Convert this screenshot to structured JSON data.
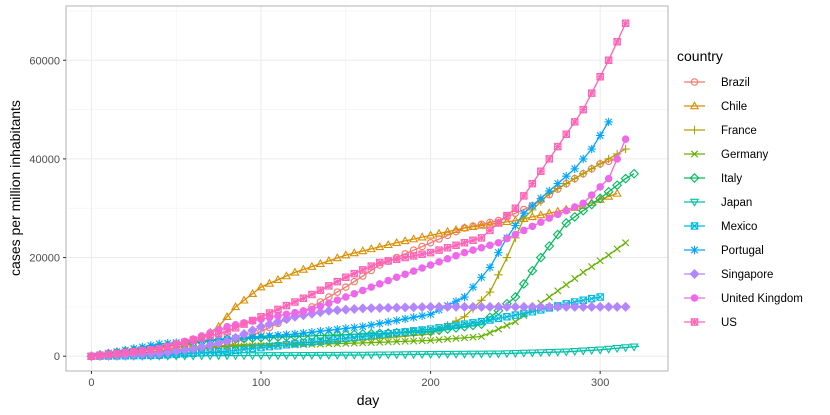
{
  "chart_data": {
    "type": "line",
    "xlabel": "day",
    "ylabel": "cases per million inhabitants",
    "xlim": [
      -15,
      340
    ],
    "ylim": [
      -3000,
      71000
    ],
    "xticks": [
      0,
      100,
      200,
      300
    ],
    "yticks": [
      0,
      20000,
      40000,
      60000
    ],
    "xtick_labels": [
      "0",
      "100",
      "200",
      "300"
    ],
    "ytick_labels": [
      "0",
      "20000",
      "40000",
      "60000"
    ],
    "grid": true,
    "legend_title": "country",
    "legend_position": "right",
    "series": [
      {
        "name": "Brazil",
        "color": "#F8766D",
        "marker": "circle",
        "x": [
          0,
          40,
          80,
          100,
          130,
          150,
          170,
          200,
          220,
          240,
          260,
          280,
          300,
          310
        ],
        "y": [
          0,
          500,
          2000,
          5000,
          10000,
          14000,
          18500,
          23000,
          26000,
          27500,
          30500,
          35000,
          39000,
          40000
        ]
      },
      {
        "name": "Chile",
        "color": "#DB8E00",
        "marker": "triangle",
        "x": [
          0,
          40,
          60,
          75,
          85,
          100,
          120,
          150,
          180,
          200,
          220,
          250,
          270,
          290,
          310
        ],
        "y": [
          0,
          1000,
          2500,
          6000,
          10000,
          14000,
          17000,
          20500,
          23000,
          24500,
          26000,
          27500,
          29000,
          30500,
          33000
        ]
      },
      {
        "name": "France",
        "color": "#AEA200",
        "marker": "plus",
        "x": [
          0,
          40,
          70,
          100,
          150,
          200,
          220,
          235,
          245,
          255,
          270,
          290,
          305,
          315
        ],
        "y": [
          0,
          500,
          2000,
          2500,
          3000,
          4500,
          8000,
          13000,
          20000,
          28000,
          33000,
          37000,
          40000,
          42000
        ]
      },
      {
        "name": "Germany",
        "color": "#64B200",
        "marker": "x",
        "x": [
          0,
          40,
          80,
          120,
          160,
          200,
          230,
          250,
          270,
          290,
          305,
          315
        ],
        "y": [
          0,
          1000,
          2000,
          2300,
          2700,
          3200,
          4000,
          7000,
          12000,
          17000,
          20500,
          23000
        ]
      },
      {
        "name": "Italy",
        "color": "#00BD5C",
        "marker": "diamond",
        "x": [
          0,
          40,
          80,
          120,
          160,
          200,
          230,
          250,
          265,
          280,
          300,
          315,
          320
        ],
        "y": [
          0,
          2000,
          3500,
          4000,
          4500,
          5000,
          6500,
          12000,
          20000,
          27000,
          32000,
          36000,
          37000
        ]
      },
      {
        "name": "Japan",
        "color": "#00C1A7",
        "marker": "triangle-down",
        "x": [
          0,
          40,
          80,
          120,
          160,
          200,
          240,
          280,
          300,
          323
        ],
        "y": [
          0,
          50,
          120,
          180,
          250,
          400,
          500,
          900,
          1300,
          2000
        ]
      },
      {
        "name": "Mexico",
        "color": "#00BADE",
        "marker": "square-x",
        "x": [
          0,
          40,
          80,
          120,
          160,
          200,
          230,
          260,
          285,
          300
        ],
        "y": [
          0,
          200,
          1000,
          2500,
          4000,
          5500,
          7000,
          9000,
          11000,
          12000
        ]
      },
      {
        "name": "Portugal",
        "color": "#00A6FF",
        "marker": "asterisk",
        "x": [
          0,
          40,
          80,
          120,
          160,
          200,
          220,
          235,
          245,
          255,
          265,
          275,
          285,
          295,
          305
        ],
        "y": [
          0,
          2500,
          3500,
          4500,
          6000,
          8500,
          12000,
          18000,
          24000,
          29000,
          32000,
          35000,
          38000,
          42000,
          47500
        ]
      },
      {
        "name": "Singapore",
        "color": "#B385FF",
        "marker": "diamond-filled",
        "x": [
          0,
          40,
          60,
          80,
          100,
          120,
          140,
          160,
          200,
          250,
          300,
          315
        ],
        "y": [
          0,
          500,
          1500,
          3000,
          6000,
          8000,
          9200,
          9700,
          10000,
          10000,
          10000,
          10000
        ]
      },
      {
        "name": "United Kingdom",
        "color": "#EF67EB",
        "marker": "circle-filled",
        "x": [
          0,
          40,
          60,
          80,
          100,
          130,
          150,
          180,
          200,
          220,
          240,
          255,
          270,
          290,
          305,
          315
        ],
        "y": [
          0,
          1500,
          3500,
          6000,
          7500,
          9500,
          12000,
          16000,
          18500,
          21000,
          23000,
          25500,
          28000,
          31000,
          36000,
          44000
        ]
      },
      {
        "name": "US",
        "color": "#FF63B6",
        "marker": "square-cross",
        "x": [
          0,
          40,
          80,
          100,
          130,
          150,
          170,
          200,
          230,
          250,
          270,
          290,
          305,
          315
        ],
        "y": [
          0,
          1500,
          5000,
          8000,
          12500,
          16000,
          19000,
          21000,
          24000,
          30000,
          40000,
          50000,
          60000,
          67500
        ]
      }
    ]
  }
}
